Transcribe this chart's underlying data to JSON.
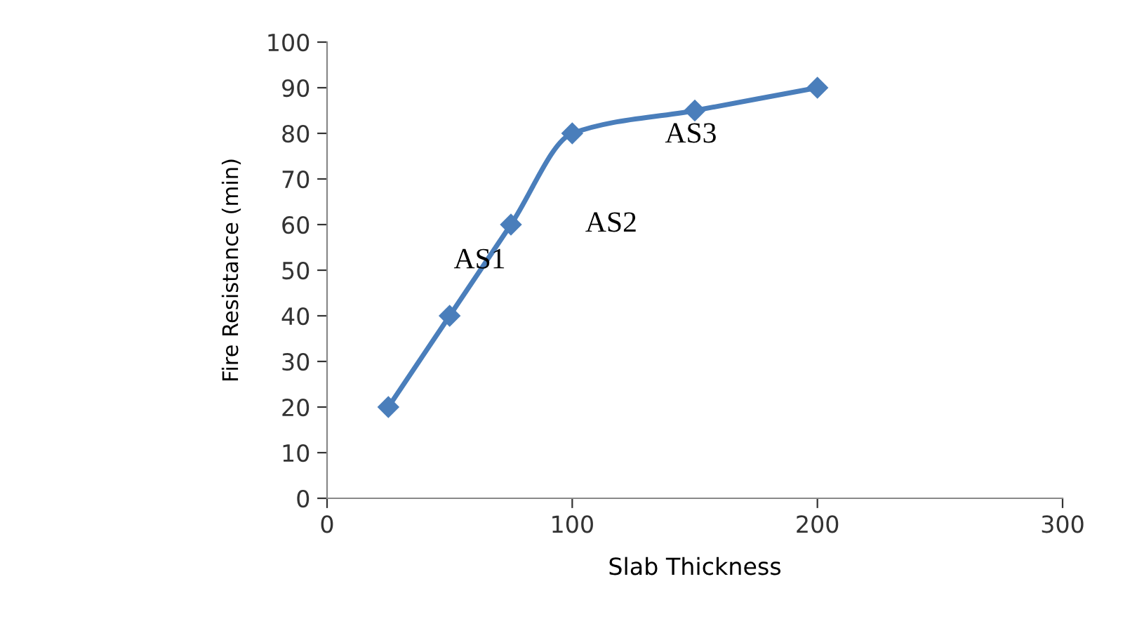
{
  "chart_data": {
    "type": "line",
    "xlabel": "Slab Thickness",
    "ylabel": "Fire Resistance (min)",
    "x": [
      25,
      50,
      75,
      100,
      150,
      200
    ],
    "series": [
      {
        "color": "#4a7ebb",
        "values": [
          20,
          40,
          60,
          80,
          85,
          90
        ]
      }
    ],
    "marker": "diamond",
    "line_style": "solid",
    "grid": false,
    "legend": false,
    "xlim": [
      0,
      300
    ],
    "xticks": [
      0,
      100,
      200,
      300
    ],
    "ylim": [
      0,
      100
    ],
    "yticks": [
      0,
      10,
      20,
      30,
      40,
      50,
      60,
      70,
      80,
      90,
      100
    ],
    "annotations": [
      {
        "text": "AS1",
        "x": 75,
        "y": 60
      },
      {
        "text": "AS2",
        "x": 100,
        "y": 80
      },
      {
        "text": "AS3",
        "x": 150,
        "y": 85
      }
    ]
  }
}
